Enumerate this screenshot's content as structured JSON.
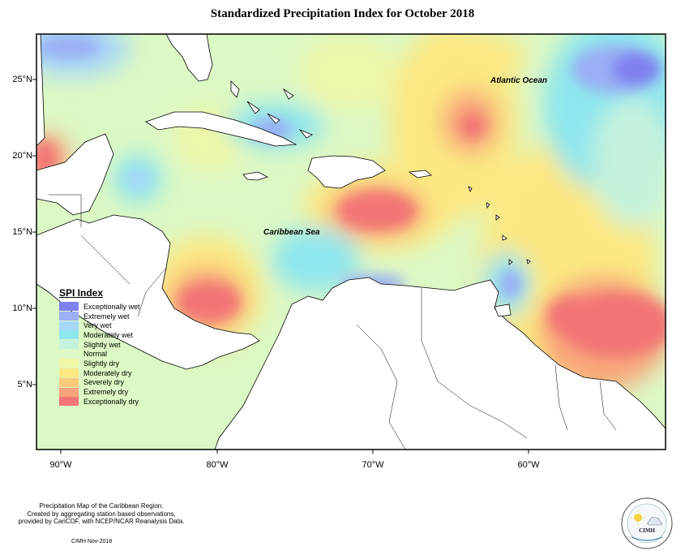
{
  "title": "Standardized Precipitation Index for October 2018",
  "lat_labels": [
    "25°N",
    "20°N",
    "15°N",
    "10°N",
    "5°N"
  ],
  "lon_labels": [
    "90°W",
    "80°W",
    "70°W",
    "60°W"
  ],
  "ocean_labels": {
    "atlantic": "Atlantic Ocean",
    "caribbean": "Caribbean Sea"
  },
  "legend": {
    "title": "SPI Index",
    "items": [
      {
        "label": "Exceptionally wet",
        "color": "#7f7ff0"
      },
      {
        "label": "Extremely wet",
        "color": "#9aaff4"
      },
      {
        "label": "Very wet",
        "color": "#a8d8f8"
      },
      {
        "label": "Moderately wet",
        "color": "#8ee6ee"
      },
      {
        "label": "Slightly wet",
        "color": "#c4f2dc"
      },
      {
        "label": "Normal",
        "color": "#dcf8c4"
      },
      {
        "label": "Slightly dry",
        "color": "#eef6a8"
      },
      {
        "label": "Moderately dry",
        "color": "#fbe882"
      },
      {
        "label": "Severely dry",
        "color": "#fcc97a"
      },
      {
        "label": "Extremely dry",
        "color": "#f8a47a"
      },
      {
        "label": "Exceptionally dry",
        "color": "#f27575"
      }
    ]
  },
  "footnote": {
    "line1": "Precipitation Map of the Caribbean Region.",
    "line2": "Created by aggregating station based observations,",
    "line3": "provided by CariCOF, with NCEP/NCAR Reanalysis Data."
  },
  "credit": "CIMH Nov-2018",
  "logo_text": "CIMH"
}
